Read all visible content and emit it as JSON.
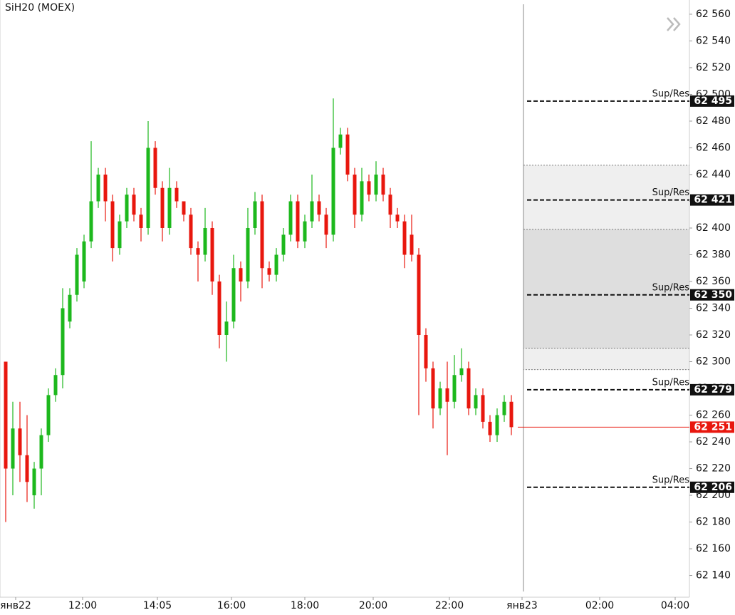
{
  "chart_data": {
    "type": "candlestick",
    "title": "SiH20 (MOEX)",
    "candles": {
      "open": [
        62300,
        62220,
        62250,
        62230,
        62200,
        62220,
        62245,
        62275,
        62290,
        62330,
        62350,
        62360,
        62390,
        62420,
        62440,
        62420,
        62385,
        62405,
        62425,
        62410,
        62400,
        62460,
        62430,
        62400,
        62430,
        62420,
        62410,
        62385,
        62380,
        62400,
        62360,
        62320,
        62330,
        62370,
        62360,
        62400,
        62420,
        62370,
        62365,
        62380,
        62395,
        62420,
        62390,
        62405,
        62420,
        62410,
        62395,
        62460,
        62470,
        62440,
        62410,
        62435,
        62425,
        62440,
        62425,
        62410,
        62405,
        62395,
        62380,
        62320,
        62295,
        62265,
        62280,
        62270,
        62290,
        62295,
        62265,
        62275,
        62255,
        62245,
        62260,
        62270
      ],
      "high": [
        62300,
        62270,
        62270,
        62260,
        62225,
        62250,
        62280,
        62295,
        62355,
        62355,
        62385,
        62395,
        62465,
        62445,
        62445,
        62425,
        62410,
        62430,
        62430,
        62415,
        62480,
        62465,
        62435,
        62445,
        62435,
        62420,
        62415,
        62390,
        62415,
        62405,
        62365,
        62345,
        62380,
        62375,
        62415,
        62427,
        62425,
        62375,
        62385,
        62400,
        62425,
        62425,
        62410,
        62440,
        62425,
        62415,
        62497,
        62475,
        62475,
        62445,
        62445,
        62440,
        62450,
        62445,
        62430,
        62415,
        62410,
        62410,
        62385,
        62325,
        62300,
        62285,
        62300,
        62305,
        62310,
        62300,
        62280,
        62280,
        62260,
        62265,
        62275,
        62275
      ],
      "low": [
        62180,
        62200,
        62210,
        62195,
        62190,
        62200,
        62240,
        62270,
        62280,
        62325,
        62345,
        62355,
        62385,
        62415,
        62405,
        62375,
        62380,
        62400,
        62405,
        62390,
        62395,
        62425,
        62390,
        62395,
        62415,
        62405,
        62380,
        62360,
        62375,
        62350,
        62310,
        62300,
        62325,
        62345,
        62355,
        62395,
        62355,
        62360,
        62360,
        62375,
        62390,
        62385,
        62385,
        62400,
        62405,
        62385,
        62390,
        62455,
        62435,
        62400,
        62405,
        62420,
        62420,
        62420,
        62400,
        62400,
        62370,
        62375,
        62260,
        62285,
        62250,
        62260,
        62230,
        62265,
        62285,
        62260,
        62260,
        62250,
        62240,
        62240,
        62255,
        62245
      ],
      "close": [
        62220,
        62250,
        62230,
        62210,
        62220,
        62245,
        62275,
        62290,
        62340,
        62350,
        62380,
        62390,
        62420,
        62440,
        62420,
        62385,
        62405,
        62425,
        62410,
        62400,
        62460,
        62430,
        62400,
        62430,
        62420,
        62410,
        62385,
        62380,
        62400,
        62360,
        62320,
        62330,
        62370,
        62360,
        62400,
        62420,
        62370,
        62365,
        62380,
        62395,
        62420,
        62390,
        62405,
        62420,
        62410,
        62395,
        62460,
        62470,
        62440,
        62410,
        62435,
        62425,
        62440,
        62425,
        62410,
        62405,
        62380,
        62380,
        62320,
        62295,
        62265,
        62280,
        62270,
        62290,
        62295,
        62265,
        62275,
        62255,
        62245,
        62260,
        62270,
        62251
      ],
      "up_color": "#1db81d",
      "down_color": "#e8170e"
    },
    "ylim": [
      62130,
      62570
    ],
    "yticks": [
      {
        "value": 62140,
        "label": "62 140"
      },
      {
        "value": 62160,
        "label": "62 160"
      },
      {
        "value": 62180,
        "label": "62 180"
      },
      {
        "value": 62200,
        "label": "62 200"
      },
      {
        "value": 62220,
        "label": "62 220"
      },
      {
        "value": 62240,
        "label": "62 240"
      },
      {
        "value": 62260,
        "label": "62 260"
      },
      {
        "value": 62280,
        "label": "62 280"
      },
      {
        "value": 62300,
        "label": "62 300"
      },
      {
        "value": 62320,
        "label": "62 320"
      },
      {
        "value": 62340,
        "label": "62 340"
      },
      {
        "value": 62360,
        "label": "62 360"
      },
      {
        "value": 62380,
        "label": "62 380"
      },
      {
        "value": 62400,
        "label": "62 400"
      },
      {
        "value": 62420,
        "label": "62 420"
      },
      {
        "value": 62440,
        "label": "62 440"
      },
      {
        "value": 62460,
        "label": "62 460"
      },
      {
        "value": 62480,
        "label": "62 480"
      },
      {
        "value": 62500,
        "label": "62 500"
      },
      {
        "value": 62520,
        "label": "62 520"
      },
      {
        "value": 62540,
        "label": "62 540"
      },
      {
        "value": 62560,
        "label": "62 560"
      }
    ],
    "xlim": [
      -0.8,
      96
    ],
    "xticks": [
      {
        "value": 1.4,
        "label": "янв22"
      },
      {
        "value": 10.8,
        "label": "12:00"
      },
      {
        "value": 21.3,
        "label": "14:05"
      },
      {
        "value": 31.7,
        "label": "16:00"
      },
      {
        "value": 42,
        "label": "18:00"
      },
      {
        "value": 51.6,
        "label": "20:00"
      },
      {
        "value": 62.3,
        "label": "22:00"
      },
      {
        "value": 72.5,
        "label": "янв23"
      },
      {
        "value": 83.4,
        "label": "02:00"
      },
      {
        "value": 94,
        "label": "04:00"
      }
    ],
    "zones": [
      {
        "from": 62447,
        "to": 62294,
        "color": "#efefef"
      },
      {
        "from": 62399,
        "to": 62310,
        "color": "#dedede"
      }
    ],
    "levels": [
      {
        "name": "Sup/Res",
        "value": 62495,
        "label": "62 495"
      },
      {
        "name": "Sup/Res",
        "value": 62421,
        "label": "62 421"
      },
      {
        "name": "Sup/Res",
        "value": 62350,
        "label": "62 350"
      },
      {
        "name": "Sup/Res",
        "value": 62279,
        "label": "62 279"
      },
      {
        "name": "Sup/Res",
        "value": 62206,
        "label": "62 206"
      }
    ],
    "last_price": {
      "value": 62251,
      "label": "62 251",
      "color": "#e8170e"
    }
  }
}
